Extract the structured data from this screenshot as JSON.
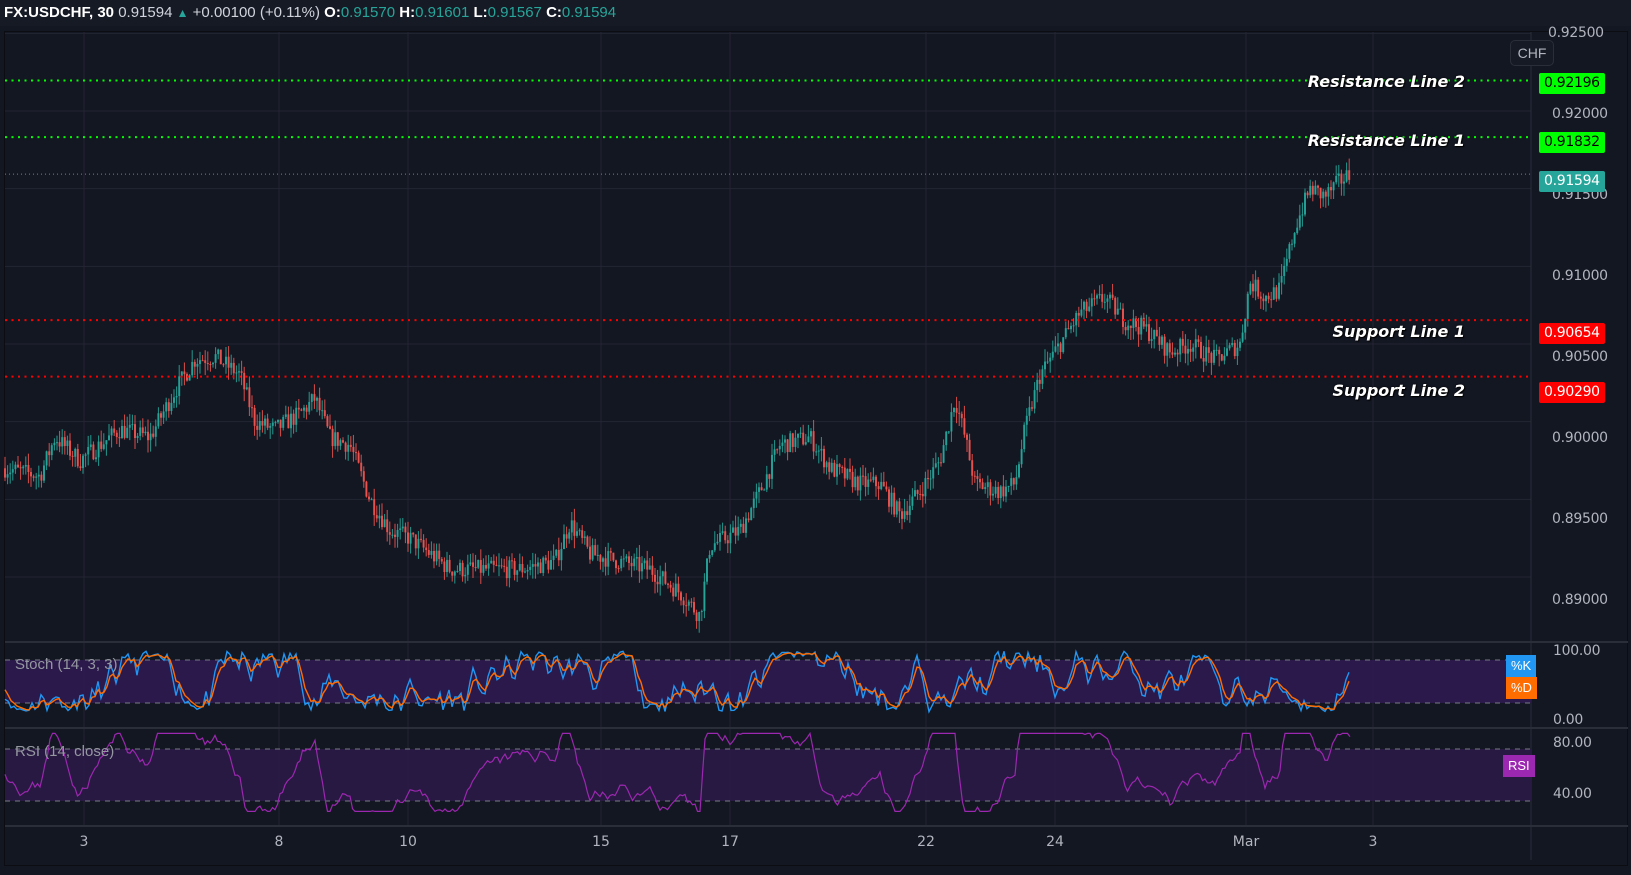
{
  "header": {
    "symbol": "FX:USDCHF, 30",
    "last": "0.91594",
    "arrow": "▲",
    "change": "+0.00100 (+0.11%)",
    "o_label": "O:",
    "o": "0.91570",
    "h_label": "H:",
    "h": "0.91601",
    "l_label": "L:",
    "l": "0.91567",
    "c_label": "C:",
    "c": "0.91594"
  },
  "price_axis": {
    "currency": "CHF",
    "ticks": [
      "0.92500",
      "0.92000",
      "0.91500",
      "0.91000",
      "0.90500",
      "0.90000",
      "0.89500",
      "0.89000"
    ]
  },
  "levels": [
    {
      "name": "Resistance Line 2",
      "value": "0.92196",
      "color": "#00ff00",
      "text_color": "#000000"
    },
    {
      "name": "Resistance Line 1",
      "value": "0.91832",
      "color": "#00ff00",
      "text_color": "#000000"
    },
    {
      "name": "Support Line 1",
      "value": "0.90654",
      "color": "#ff0000",
      "text_color": "#ffffff"
    },
    {
      "name": "Support Line 2",
      "value": "0.90290",
      "color": "#ff0000",
      "text_color": "#ffffff"
    }
  ],
  "last_price_tag": {
    "value": "0.91594",
    "color": "#26a69a"
  },
  "stoch": {
    "title": "Stoch (14, 3, 3)",
    "k_label": "%K",
    "d_label": "%D",
    "k_color": "#2196f3",
    "d_color": "#ff6d00",
    "ticks": [
      "100.00",
      "0.00"
    ]
  },
  "rsi": {
    "title": "RSI (14, close)",
    "label": "RSI",
    "color": "#9c27b0",
    "ticks": [
      "80.00",
      "40.00"
    ]
  },
  "time_axis": {
    "labels": [
      "3",
      "8",
      "10",
      "15",
      "17",
      "22",
      "24",
      "Mar",
      "3"
    ]
  },
  "colors": {
    "background": "#131722",
    "up": "#26a69a",
    "down": "#ef5350",
    "grid": "#232632"
  },
  "chart_data": {
    "type": "candlestick",
    "title": "FX:USDCHF, 30",
    "xlabel": "",
    "ylabel": "CHF",
    "ylim": [
      0.8875,
      0.9255
    ],
    "x_tick_labels": [
      "3",
      "8",
      "10",
      "15",
      "17",
      "22",
      "24",
      "Mar",
      "3"
    ],
    "grid": true,
    "legend": [],
    "price_path_approx": [
      {
        "x_label": "start",
        "price": 0.897
      },
      {
        "x_label": "~3",
        "price": 0.8985
      },
      {
        "x_label": "~5",
        "price": 0.9
      },
      {
        "x_label": "~7 (peak)",
        "price": 0.9045
      },
      {
        "x_label": "8",
        "price": 0.9005
      },
      {
        "x_label": "~9",
        "price": 0.9015
      },
      {
        "x_label": "10",
        "price": 0.891
      },
      {
        "x_label": "~13",
        "price": 0.8905
      },
      {
        "x_label": "~14",
        "price": 0.8935
      },
      {
        "x_label": "15",
        "price": 0.892
      },
      {
        "x_label": "~16 (low)",
        "price": 0.887
      },
      {
        "x_label": "17",
        "price": 0.893
      },
      {
        "x_label": "~18",
        "price": 0.8985
      },
      {
        "x_label": "~20",
        "price": 0.896
      },
      {
        "x_label": "22 (spike)",
        "price": 0.902
      },
      {
        "x_label": "~23",
        "price": 0.8955
      },
      {
        "x_label": "24",
        "price": 0.9055
      },
      {
        "x_label": "~25",
        "price": 0.9075
      },
      {
        "x_label": "~27",
        "price": 0.9045
      },
      {
        "x_label": "~28",
        "price": 0.9045
      },
      {
        "x_label": "Mar",
        "price": 0.9085
      },
      {
        "x_label": "~Mar 2",
        "price": 0.9155
      },
      {
        "x_label": "last",
        "price": 0.91594
      }
    ],
    "horizontal_lines": [
      {
        "label": "Resistance Line 2",
        "value": 0.92196,
        "color": "green",
        "style": "dotted"
      },
      {
        "label": "Resistance Line 1",
        "value": 0.91832,
        "color": "green",
        "style": "dotted"
      },
      {
        "label": "Support Line 1",
        "value": 0.90654,
        "color": "red",
        "style": "dotted"
      },
      {
        "label": "Support Line 2",
        "value": 0.9029,
        "color": "red",
        "style": "dotted"
      }
    ],
    "last": 0.91594,
    "ohlc_last": {
      "open": 0.9157,
      "high": 0.91601,
      "low": 0.91567,
      "close": 0.91594
    },
    "change": 0.001,
    "change_pct": 0.11,
    "indicators": [
      {
        "name": "Stoch (14, 3, 3)",
        "series": [
          "%K",
          "%D"
        ],
        "range": [
          0,
          100
        ],
        "bands": [
          80,
          20
        ]
      },
      {
        "name": "RSI (14, close)",
        "series": [
          "RSI"
        ],
        "range": [
          20,
          90
        ],
        "bands": [
          70,
          30
        ]
      }
    ]
  }
}
